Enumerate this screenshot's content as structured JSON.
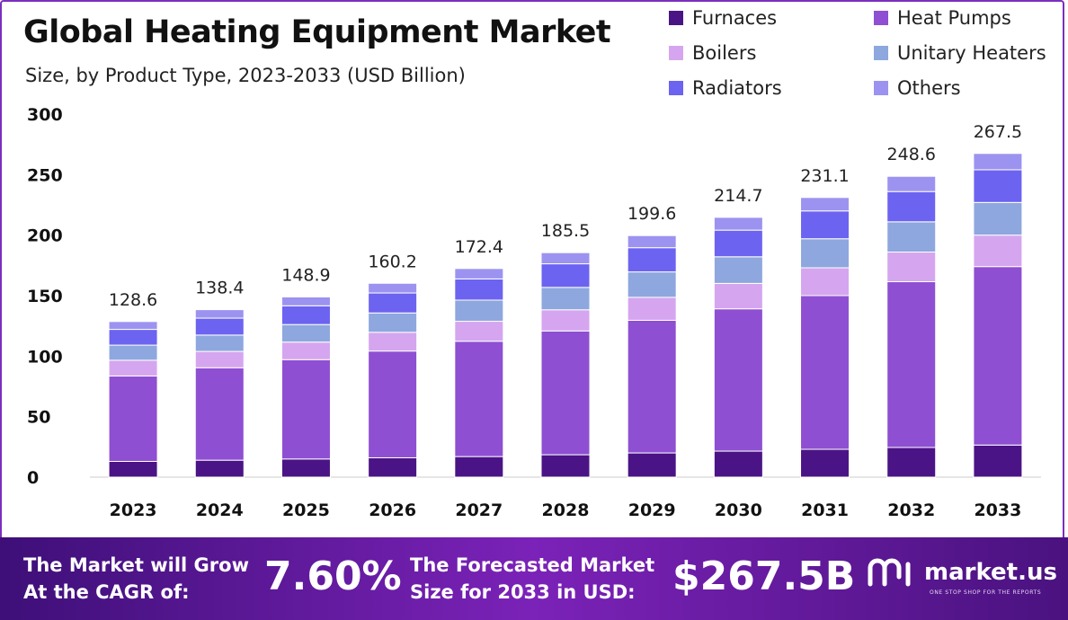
{
  "header": {
    "title": "Global Heating Equipment Market",
    "subtitle": "Size, by Product Type, 2023-2033 (USD Billion)"
  },
  "chart_data": {
    "type": "bar",
    "stacked": true,
    "categories": [
      "2023",
      "2024",
      "2025",
      "2026",
      "2027",
      "2028",
      "2029",
      "2030",
      "2031",
      "2032",
      "2033"
    ],
    "series": [
      {
        "name": "Furnaces",
        "color": "#4b1486",
        "values": [
          13.0,
          14.0,
          15.0,
          16.0,
          17.0,
          18.5,
          20.0,
          21.5,
          23.0,
          24.5,
          26.5
        ]
      },
      {
        "name": "Heat Pumps",
        "color": "#8e4fd2",
        "values": [
          70.6,
          76.4,
          82.1,
          88.2,
          95.3,
          102.3,
          109.6,
          117.6,
          127.0,
          137.0,
          147.5
        ]
      },
      {
        "name": "Boilers",
        "color": "#d5a6ef",
        "values": [
          13.0,
          13.5,
          14.5,
          15.5,
          16.5,
          17.5,
          19.0,
          21.0,
          23.0,
          24.5,
          26.0
        ]
      },
      {
        "name": "Unitary Heaters",
        "color": "#8ea7de",
        "values": [
          12.5,
          13.5,
          14.5,
          16.0,
          17.5,
          18.5,
          21.0,
          22.0,
          24.0,
          25.0,
          27.0
        ]
      },
      {
        "name": "Radiators",
        "color": "#6c63f1",
        "values": [
          13.0,
          14.0,
          15.5,
          16.5,
          17.5,
          19.5,
          20.0,
          22.0,
          23.0,
          25.0,
          27.0
        ]
      },
      {
        "name": "Others",
        "color": "#9c93f0",
        "values": [
          6.5,
          7.0,
          7.3,
          8.0,
          8.6,
          9.2,
          10.0,
          10.6,
          11.1,
          12.6,
          13.5
        ]
      }
    ],
    "totals": [
      "128.6",
      "138.4",
      "148.9",
      "160.2",
      "172.4",
      "185.5",
      "199.6",
      "214.7",
      "231.1",
      "248.6",
      "267.5"
    ],
    "ylim": [
      0,
      300
    ],
    "yticks": [
      "0",
      "50",
      "100",
      "150",
      "200",
      "250",
      "300"
    ],
    "xlabel": "",
    "ylabel": "",
    "grid": false,
    "legend_position": "top-right"
  },
  "footer": {
    "cagr_line1": "The Market will Grow",
    "cagr_line2": "At the CAGR of:",
    "cagr_value": "7.60%",
    "forecast_line1": "The Forecasted Market",
    "forecast_line2": "Size for 2033 in USD:",
    "forecast_value": "$267.5B",
    "logo_text": "market.us",
    "logo_tagline": "ONE STOP SHOP FOR THE REPORTS"
  }
}
